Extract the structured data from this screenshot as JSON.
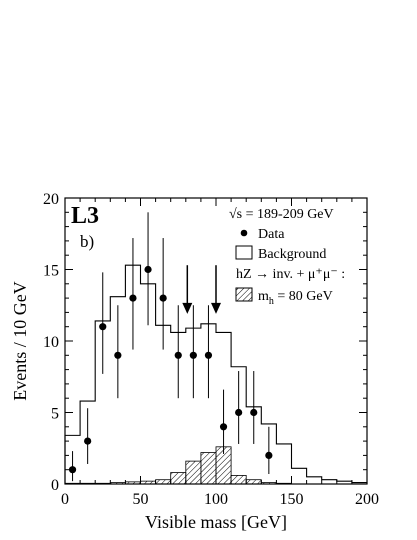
{
  "chart_data": {
    "type": "histogram",
    "experiment_label": "L3",
    "panel_label": "b)",
    "xlabel": "Visible mass  [GeV]",
    "ylabel": "Events / 10 GeV",
    "xlim": [
      0,
      200
    ],
    "ylim": [
      0,
      20
    ],
    "x_ticks": [
      0,
      50,
      100,
      150,
      200
    ],
    "y_ticks": [
      0,
      5,
      10,
      15,
      20
    ],
    "legend": {
      "energy": "√s = 189-209 GeV",
      "data": "Data",
      "background": "Background",
      "signal_title": "hZ → inv. + μ⁺μ⁻ :",
      "signal": "m_h = 80 GeV"
    },
    "bin_width": 10,
    "background": [
      3.4,
      5.8,
      11.4,
      13.1,
      15.3,
      14.0,
      11.1,
      10.6,
      10.9,
      11.2,
      10.6,
      8.2,
      5.4,
      4.2,
      2.8,
      1.1,
      0.5,
      0.3,
      0.2,
      0.1
    ],
    "signal": [
      0.05,
      0.05,
      0.05,
      0.1,
      0.15,
      0.2,
      0.3,
      0.8,
      1.6,
      2.2,
      2.6,
      0.6,
      0.3,
      0.1,
      0.05,
      0.0,
      0.0,
      0.0,
      0.0,
      0.0
    ],
    "data": [
      {
        "x": 5,
        "y": 1,
        "err_low": 0.8,
        "err_high": 1.3
      },
      {
        "x": 15,
        "y": 3,
        "err_low": 1.6,
        "err_high": 2.3
      },
      {
        "x": 25,
        "y": 11,
        "err_low": 3.3,
        "err_high": 3.8
      },
      {
        "x": 35,
        "y": 9,
        "err_low": 3.0,
        "err_high": 3.5
      },
      {
        "x": 45,
        "y": 13,
        "err_low": 3.6,
        "err_high": 4.2
      },
      {
        "x": 55,
        "y": 15,
        "err_low": 3.9,
        "err_high": 4.0
      },
      {
        "x": 65,
        "y": 13,
        "err_low": 3.6,
        "err_high": 4.2
      },
      {
        "x": 75,
        "y": 9,
        "err_low": 3.0,
        "err_high": 3.5
      },
      {
        "x": 85,
        "y": 9,
        "err_low": 3.0,
        "err_high": 3.5
      },
      {
        "x": 95,
        "y": 9,
        "err_low": 3.0,
        "err_high": 3.5
      },
      {
        "x": 105,
        "y": 4,
        "err_low": 1.9,
        "err_high": 2.6
      },
      {
        "x": 115,
        "y": 5,
        "err_low": 2.2,
        "err_high": 2.9
      },
      {
        "x": 125,
        "y": 5,
        "err_low": 2.2,
        "err_high": 2.9
      },
      {
        "x": 135,
        "y": 2,
        "err_low": 1.3,
        "err_high": 2.0
      }
    ],
    "arrows_x": [
      81,
      100
    ],
    "colors": {
      "axis": "#000000",
      "background_line": "#000000",
      "signal_hatch": "#000000"
    }
  }
}
